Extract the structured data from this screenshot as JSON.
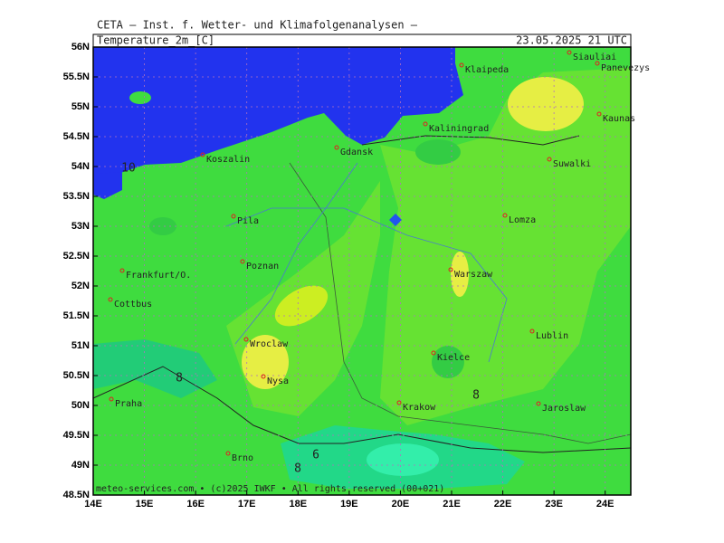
{
  "header": {
    "institute": "CETA — Inst. f. Wetter- und Klimafolgenanalysen —",
    "variable": "Temperature_2m_[C]",
    "valid_time": "23.05.2025 21 UTC"
  },
  "map": {
    "lon_range": [
      14,
      24.5
    ],
    "lat_range": [
      48.5,
      56
    ],
    "lon_ticks": [
      {
        "value": 14,
        "label": "14E"
      },
      {
        "value": 15,
        "label": "15E"
      },
      {
        "value": 16,
        "label": "16E"
      },
      {
        "value": 17,
        "label": "17E"
      },
      {
        "value": 18,
        "label": "18E"
      },
      {
        "value": 19,
        "label": "19E"
      },
      {
        "value": 20,
        "label": "20E"
      },
      {
        "value": 21,
        "label": "21E"
      },
      {
        "value": 22,
        "label": "22E"
      },
      {
        "value": 23,
        "label": "23E"
      },
      {
        "value": 24,
        "label": "24E"
      }
    ],
    "lat_ticks": [
      {
        "value": 56,
        "label": "56N"
      },
      {
        "value": 55.5,
        "label": "55.5N"
      },
      {
        "value": 55,
        "label": "55N"
      },
      {
        "value": 54.5,
        "label": "54.5N"
      },
      {
        "value": 54,
        "label": "54N"
      },
      {
        "value": 53.5,
        "label": "53.5N"
      },
      {
        "value": 53,
        "label": "53N"
      },
      {
        "value": 52.5,
        "label": "52.5N"
      },
      {
        "value": 52,
        "label": "52N"
      },
      {
        "value": 51.5,
        "label": "51.5N"
      },
      {
        "value": 51,
        "label": "51N"
      },
      {
        "value": 50.5,
        "label": "50.5N"
      },
      {
        "value": 50,
        "label": "50N"
      },
      {
        "value": 49.5,
        "label": "49.5N"
      },
      {
        "value": 49,
        "label": "49N"
      },
      {
        "value": 48.5,
        "label": "48.5N"
      }
    ],
    "cities": [
      "Siauliai",
      "Panevezys",
      "Klaipeda",
      "Kaunas",
      "Kaliningrad",
      "Suwalki",
      "Koszalin",
      "Gdansk",
      "Lomza",
      "Pila",
      "Poznan",
      "Warszaw",
      "Frankfurt/O.",
      "Cottbus",
      "Lublin",
      "Wroclaw",
      "Kielce",
      "Nysa",
      "Praha",
      "Krakow",
      "Jaroslaw",
      "Brno"
    ],
    "contour_labels": [
      10,
      8,
      8,
      6,
      8
    ],
    "footer": "meteo-services.com • (c)2025 IWKF • All rights reserved (00+021)"
  }
}
